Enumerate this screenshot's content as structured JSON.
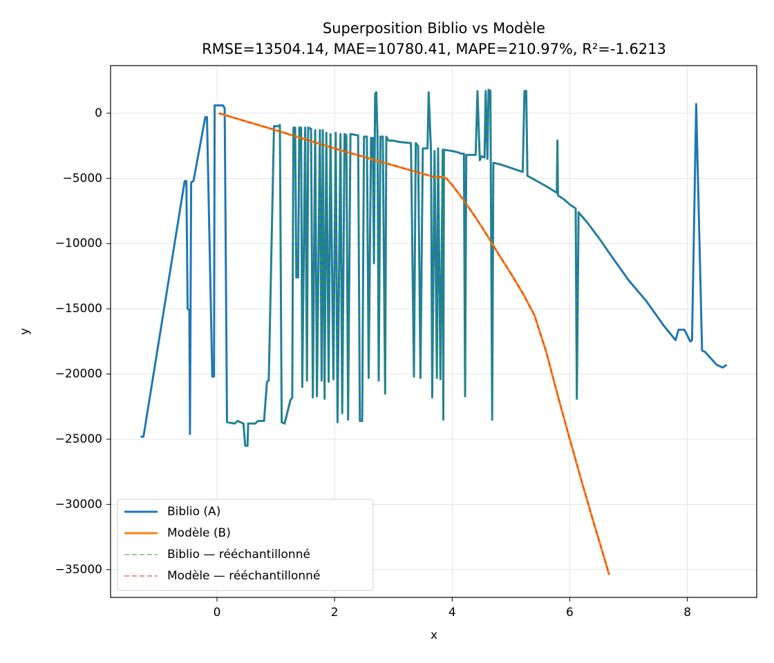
{
  "chart_data": {
    "type": "line",
    "title": "Superposition Biblio vs Modèle",
    "subtitle": "RMSE=13504.14, MAE=10780.41, MAPE=210.97%, R²=-1.6213",
    "x_label": "x",
    "y_label": "y",
    "xlim": [
      -1.81,
      9.18
    ],
    "ylim": [
      -37130,
      3650
    ],
    "xticks": [
      0,
      2,
      4,
      6,
      8
    ],
    "yticks": [
      {
        "value": -35000,
        "label": "−35000"
      },
      {
        "value": -30000,
        "label": "−30000"
      },
      {
        "value": -25000,
        "label": "−25000"
      },
      {
        "value": -20000,
        "label": "−20000"
      },
      {
        "value": -15000,
        "label": "−15000"
      },
      {
        "value": -10000,
        "label": "−10000"
      },
      {
        "value": -5000,
        "label": "−5000"
      },
      0
    ],
    "grid": true,
    "legend": "lower left",
    "series": [
      {
        "name": "Biblio (A)",
        "color": "#1f77b4",
        "style": "solid",
        "width": 3,
        "x": [
          -1.3,
          -1.25,
          -0.55,
          -0.52,
          -0.5,
          -0.47,
          -0.46,
          -0.44,
          -0.4,
          -0.2,
          -0.17,
          -0.08,
          -0.05,
          -0.04,
          0.1,
          0.13,
          0.17,
          0.3,
          0.35,
          0.45,
          0.48,
          0.52,
          0.53,
          0.65,
          0.7,
          0.8,
          0.85,
          0.88,
          0.97,
          1.05,
          1.07,
          1.1,
          1.15,
          1.25,
          1.28,
          1.3,
          1.33,
          1.35,
          1.38,
          1.4,
          1.43,
          1.45,
          1.5,
          1.53,
          1.55,
          1.6,
          1.63,
          1.67,
          1.7,
          1.75,
          1.78,
          1.8,
          1.83,
          1.86,
          1.9,
          1.93,
          1.98,
          2.02,
          2.05,
          2.1,
          2.13,
          2.17,
          2.2,
          2.23,
          2.27,
          2.4,
          2.43,
          2.47,
          2.5,
          2.55,
          2.58,
          2.62,
          2.65,
          2.67,
          2.69,
          2.71,
          2.73,
          2.75,
          2.78,
          2.82,
          2.86,
          2.88,
          2.92,
          3.0,
          3.1,
          3.3,
          3.35,
          3.38,
          3.42,
          3.46,
          3.5,
          3.58,
          3.6,
          3.64,
          3.66,
          3.7,
          3.74,
          3.76,
          3.8,
          3.84,
          3.85,
          3.86,
          4.0,
          4.1,
          4.15,
          4.2,
          4.22,
          4.24,
          4.4,
          4.43,
          4.47,
          4.5,
          4.55,
          4.57,
          4.6,
          4.62,
          4.65,
          4.68,
          4.7,
          4.8,
          5.0,
          5.2,
          5.23,
          5.26,
          5.28,
          5.4,
          5.6,
          5.78,
          5.79,
          5.8,
          5.9,
          6.0,
          6.1,
          6.12,
          6.15,
          6.3,
          6.5,
          6.7,
          7.0,
          7.3,
          7.6,
          7.8,
          7.85,
          7.95,
          8.05,
          8.08,
          8.15,
          8.25,
          8.3,
          8.5,
          8.6,
          8.67
        ],
        "values": [
          -24800,
          -24800,
          -5200,
          -5200,
          -15000,
          -15100,
          -24600,
          -5300,
          -5200,
          -300,
          -300,
          -20200,
          -20200,
          600,
          600,
          400,
          -23700,
          -23800,
          -23600,
          -23800,
          -25500,
          -25500,
          -23800,
          -23800,
          -23600,
          -23600,
          -20600,
          -20500,
          -1000,
          -1000,
          -900,
          -23700,
          -23800,
          -22000,
          -21800,
          -1100,
          -1100,
          -12600,
          -12600,
          -1100,
          -1100,
          -21000,
          -1100,
          -20500,
          -1100,
          -1200,
          -21800,
          -1300,
          -21700,
          -1300,
          -20500,
          -1300,
          -21900,
          -1500,
          -20600,
          -1600,
          -20400,
          -1500,
          -23700,
          -1600,
          -23000,
          -1600,
          -1700,
          -23500,
          -1600,
          -1700,
          -23600,
          -23600,
          -1800,
          -1800,
          -20300,
          -1900,
          -1900,
          -11500,
          1500,
          1600,
          -1800,
          -20500,
          -1800,
          -1800,
          -21500,
          -1800,
          -2100,
          -2100,
          -2200,
          -2300,
          -20200,
          -2300,
          -2500,
          -20300,
          -2700,
          -2700,
          1600,
          -2900,
          -21800,
          -2900,
          -20300,
          -2700,
          -20400,
          -2800,
          -23500,
          -2800,
          -2900,
          -3000,
          -3100,
          -3100,
          -21700,
          -3200,
          -3200,
          1700,
          -3600,
          -3300,
          -3400,
          1700,
          -3500,
          1800,
          1700,
          -23500,
          -3800,
          -3900,
          -4200,
          -4500,
          1700,
          1700,
          -4800,
          -5100,
          -5600,
          -6100,
          -2100,
          -6300,
          -6600,
          -7000,
          -7300,
          -21900,
          -7600,
          -8400,
          -9600,
          -10900,
          -12800,
          -14400,
          -16300,
          -17400,
          -16600,
          -16600,
          -17500,
          -17400,
          700,
          -18200,
          -18300,
          -19300,
          -19500,
          -19300
        ]
      },
      {
        "name": "Modèle (B)",
        "color": "#ff7f0e",
        "style": "solid",
        "width": 3,
        "x": [
          0.03,
          1,
          2,
          3,
          3.7,
          3.85,
          3.9,
          4.0,
          4.2,
          4.4,
          4.6,
          4.8,
          5.0,
          5.2,
          5.4,
          5.6,
          5.8,
          6.0,
          6.2,
          6.4,
          6.6,
          6.67
        ],
        "values": [
          0,
          -1300,
          -2700,
          -4000,
          -4900,
          -4900,
          -5000,
          -5500,
          -6700,
          -8000,
          -9400,
          -10900,
          -12300,
          -13800,
          -15500,
          -18300,
          -21700,
          -25000,
          -28200,
          -31300,
          -34300,
          -35400
        ]
      },
      {
        "name": "Biblio — rééchantillonné",
        "color": "#2ca02c",
        "style": "dashed",
        "width": 2,
        "x": [
          0.17,
          0.3,
          0.35,
          0.45,
          0.48,
          0.52,
          0.53,
          0.65,
          0.7,
          0.8,
          0.85,
          0.88,
          0.97,
          1.05,
          1.07,
          1.1,
          1.15,
          1.25,
          1.28,
          1.3,
          1.33,
          1.35,
          1.38,
          1.4,
          1.43,
          1.45,
          1.5,
          1.53,
          1.55,
          1.6,
          1.63,
          1.67,
          1.7,
          1.75,
          1.78,
          1.8,
          1.83,
          1.86,
          1.9,
          1.93,
          1.98,
          2.02,
          2.05,
          2.1,
          2.13,
          2.17,
          2.2,
          2.23,
          2.27,
          2.4,
          2.43,
          2.47,
          2.5,
          2.55,
          2.58,
          2.62,
          2.65,
          2.67,
          2.69,
          2.71,
          2.73,
          2.75,
          2.78,
          2.82,
          2.86,
          2.88,
          2.92,
          3.0,
          3.1,
          3.3,
          3.35,
          3.38,
          3.42,
          3.46,
          3.5,
          3.58,
          3.6,
          3.64,
          3.66,
          3.7,
          3.74,
          3.76,
          3.8,
          3.84,
          3.85,
          3.86,
          4.0,
          4.1,
          4.15,
          4.2,
          4.22,
          4.24,
          4.4,
          4.43,
          4.47,
          4.5,
          4.55,
          4.57,
          4.6,
          4.62,
          4.65,
          4.68,
          4.7,
          4.8,
          5.0,
          5.2,
          5.23,
          5.26,
          5.28,
          5.4,
          5.6,
          5.78,
          5.79,
          5.8,
          5.9,
          6.0,
          6.1,
          6.12,
          6.15,
          6.3,
          6.5,
          6.67
        ],
        "values": [
          -23700,
          -23800,
          -23600,
          -23800,
          -25500,
          -25500,
          -23800,
          -23800,
          -23600,
          -23600,
          -20600,
          -20500,
          -1000,
          -1000,
          -900,
          -23700,
          -23800,
          -22000,
          -21800,
          -1100,
          -1100,
          -12600,
          -12600,
          -1100,
          -1100,
          -21000,
          -1100,
          -20500,
          -1100,
          -1200,
          -21800,
          -1300,
          -21700,
          -1300,
          -20500,
          -1300,
          -21900,
          -1500,
          -20600,
          -1600,
          -20400,
          -1500,
          -23700,
          -1600,
          -23000,
          -1600,
          -1700,
          -23500,
          -1600,
          -1700,
          -23600,
          -23600,
          -1800,
          -1800,
          -20300,
          -1900,
          -1900,
          -11500,
          1500,
          1600,
          -1800,
          -20500,
          -1800,
          -1800,
          -21500,
          -1800,
          -2100,
          -2100,
          -2200,
          -2300,
          -20200,
          -2300,
          -2500,
          -20300,
          -2700,
          -2700,
          1600,
          -2900,
          -21800,
          -2900,
          -20300,
          -2700,
          -20400,
          -2800,
          -23500,
          -2800,
          -2900,
          -3000,
          -3100,
          -3100,
          -21700,
          -3200,
          -3200,
          1700,
          -3600,
          -3300,
          -3400,
          1700,
          -3500,
          1800,
          1700,
          -23500,
          -3800,
          -3900,
          -4200,
          -4500,
          1700,
          1700,
          -4800,
          -5100,
          -5600,
          -6100,
          -2100,
          -6300,
          -6600,
          -7000,
          -7300,
          -21900,
          -7600,
          -8400,
          -9600,
          -10800
        ]
      },
      {
        "name": "Modèle — rééchantillonné",
        "color": "#d62728",
        "style": "dashed",
        "width": 2,
        "x": [
          0.03,
          1,
          2,
          3,
          3.7,
          3.85,
          3.9,
          4.0,
          4.2,
          4.4,
          4.6,
          4.8,
          5.0,
          5.2,
          5.4,
          5.6,
          5.8,
          6.0,
          6.2,
          6.4,
          6.6,
          6.67
        ],
        "values": [
          0,
          -1300,
          -2700,
          -4000,
          -4900,
          -4900,
          -5000,
          -5500,
          -6700,
          -8000,
          -9400,
          -10900,
          -12300,
          -13800,
          -15500,
          -18300,
          -21700,
          -25000,
          -28200,
          -31300,
          -34300,
          -35400
        ]
      }
    ]
  }
}
